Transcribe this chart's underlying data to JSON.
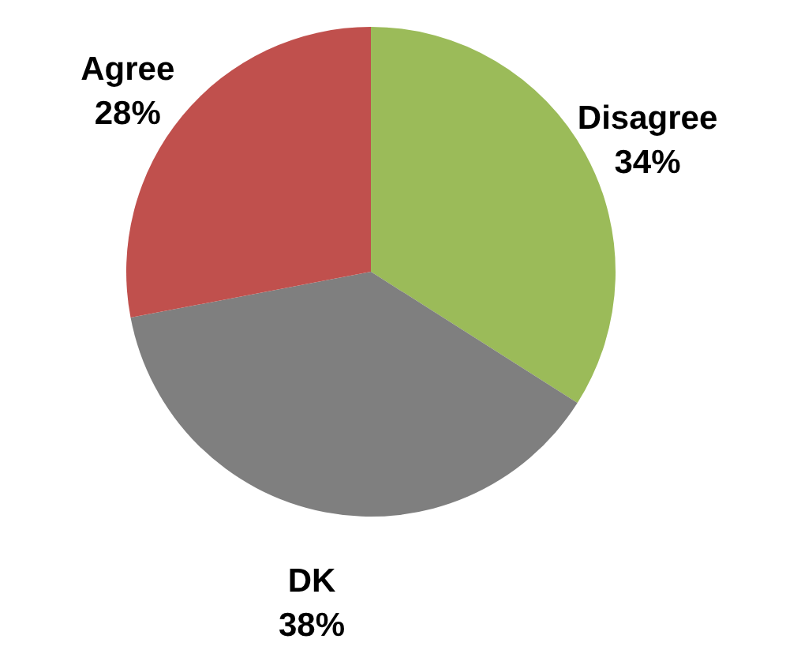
{
  "chart_data": {
    "type": "pie",
    "categories": [
      "Disagree",
      "DK",
      "Agree"
    ],
    "values": [
      34,
      38,
      28
    ],
    "colors": [
      "#9bbb59",
      "#7f7f7f",
      "#c0504d"
    ],
    "value_labels": [
      "34%",
      "38%",
      "28%"
    ]
  }
}
